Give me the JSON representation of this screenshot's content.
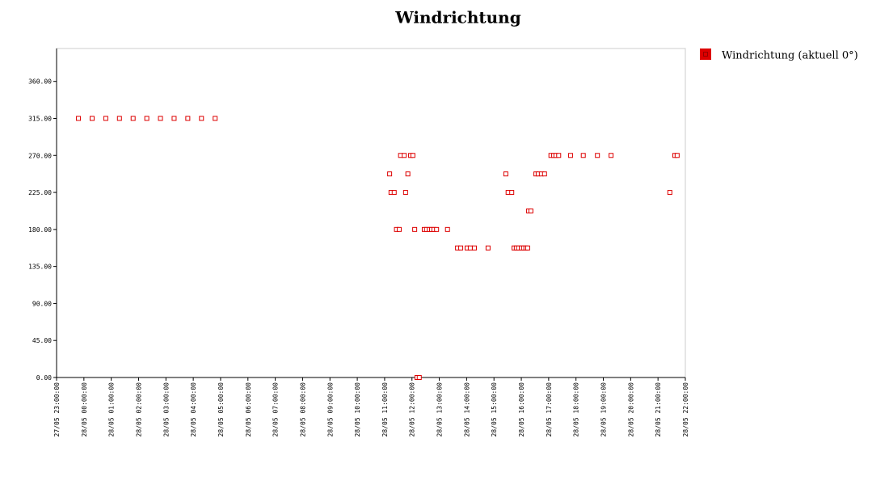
{
  "chart_data": {
    "type": "scatter",
    "title": "Windrichtung",
    "legend_position": "right",
    "grid": false,
    "series": [
      {
        "name": "Windrichtung (aktuell 0°)",
        "color": "#dd0000",
        "x": [
          "27/05 23:48:00",
          "28/05 00:18:00",
          "28/05 00:48:00",
          "28/05 01:18:00",
          "28/05 01:48:00",
          "28/05 02:18:00",
          "28/05 02:48:00",
          "28/05 03:18:00",
          "28/05 03:48:00",
          "28/05 04:18:00",
          "28/05 04:48:00",
          "28/05 11:11:00",
          "28/05 11:14:00",
          "28/05 11:21:00",
          "28/05 11:26:00",
          "28/05 11:32:00",
          "28/05 11:35:00",
          "28/05 11:43:00",
          "28/05 11:46:00",
          "28/05 11:51:00",
          "28/05 11:57:00",
          "28/05 12:02:00",
          "28/05 12:06:00",
          "28/05 12:11:00",
          "28/05 12:16:00",
          "28/05 12:27:00",
          "28/05 12:32:00",
          "28/05 12:38:00",
          "28/05 12:43:00",
          "28/05 12:48:00",
          "28/05 12:54:00",
          "28/05 13:18:00",
          "28/05 13:40:00",
          "28/05 13:47:00",
          "28/05 14:01:00",
          "28/05 14:08:00",
          "28/05 14:17:00",
          "28/05 14:47:00",
          "28/05 15:26:00",
          "28/05 15:31:00",
          "28/05 15:39:00",
          "28/05 15:44:00",
          "28/05 15:49:00",
          "28/05 15:54:00",
          "28/05 16:00:00",
          "28/05 16:05:00",
          "28/05 16:10:00",
          "28/05 16:14:00",
          "28/05 16:16:00",
          "28/05 16:21:00",
          "28/05 16:32:00",
          "28/05 16:37:00",
          "28/05 16:44:00",
          "28/05 16:51:00",
          "28/05 17:05:00",
          "28/05 17:11:00",
          "28/05 17:16:00",
          "28/05 17:22:00",
          "28/05 17:48:00",
          "28/05 18:16:00",
          "28/05 18:47:00",
          "28/05 19:17:00",
          "28/05 21:26:00",
          "28/05 21:37:00",
          "28/05 21:42:00"
        ],
        "values": [
          315,
          315,
          315,
          315,
          315,
          315,
          315,
          315,
          315,
          315,
          315,
          247.5,
          225,
          225,
          180,
          180,
          270,
          270,
          225,
          247.5,
          270,
          270,
          180,
          0,
          0,
          180,
          180,
          180,
          180,
          180,
          180,
          180,
          157.5,
          157.5,
          157.5,
          157.5,
          157.5,
          157.5,
          247.5,
          225,
          225,
          157.5,
          157.5,
          157.5,
          157.5,
          157.5,
          157.5,
          157.5,
          202.5,
          202.5,
          247.5,
          247.5,
          247.5,
          247.5,
          270,
          270,
          270,
          270,
          270,
          270,
          270,
          270,
          225,
          270,
          270
        ]
      }
    ],
    "xlim": [
      "27/05 23:00:00",
      "28/05 22:00:00"
    ],
    "xticks": [
      "27/05 23:00:00",
      "28/05 00:00:00",
      "28/05 01:00:00",
      "28/05 02:00:00",
      "28/05 03:00:00",
      "28/05 04:00:00",
      "28/05 05:00:00",
      "28/05 06:00:00",
      "28/05 07:00:00",
      "28/05 08:00:00",
      "28/05 09:00:00",
      "28/05 10:00:00",
      "28/05 11:00:00",
      "28/05 12:00:00",
      "28/05 13:00:00",
      "28/05 14:00:00",
      "28/05 15:00:00",
      "28/05 16:00:00",
      "28/05 17:00:00",
      "28/05 18:00:00",
      "28/05 19:00:00",
      "28/05 20:00:00",
      "28/05 21:00:00",
      "28/05 22:00:00"
    ],
    "ylim": [
      0,
      400
    ],
    "yticks": [
      {
        "value": 0,
        "label": "0.00"
      },
      {
        "value": 45,
        "label": "45.00"
      },
      {
        "value": 90,
        "label": "90.00"
      },
      {
        "value": 135,
        "label": "135.00"
      },
      {
        "value": 180,
        "label": "180.00"
      },
      {
        "value": 225,
        "label": "225.00"
      },
      {
        "value": 270,
        "label": "270.00"
      },
      {
        "value": 315,
        "label": "315.00"
      },
      {
        "value": 360,
        "label": "360.00"
      }
    ]
  }
}
